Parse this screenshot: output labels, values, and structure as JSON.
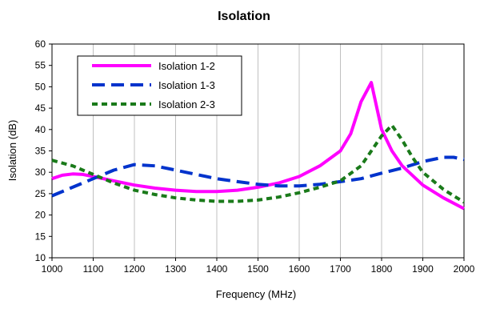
{
  "chart_data": {
    "type": "line",
    "title": "Isolation",
    "xlabel": "Frequency (MHz)",
    "ylabel": "Isolation (dB)",
    "xlim": [
      1000,
      2000
    ],
    "ylim": [
      10,
      60
    ],
    "xticks": [
      1000,
      1100,
      1200,
      1300,
      1400,
      1500,
      1600,
      1700,
      1800,
      1900,
      2000
    ],
    "yticks": [
      10,
      15,
      20,
      25,
      30,
      35,
      40,
      45,
      50,
      55,
      60
    ],
    "grid": "vertical",
    "legend_position": "top-left",
    "series": [
      {
        "name": "Isolation 1-2",
        "color": "#ff00ff",
        "style": "solid",
        "x": [
          1000,
          1025,
          1050,
          1075,
          1100,
          1150,
          1200,
          1250,
          1300,
          1350,
          1400,
          1450,
          1500,
          1550,
          1600,
          1650,
          1700,
          1725,
          1750,
          1775,
          1800,
          1825,
          1850,
          1900,
          1950,
          2000
        ],
        "y": [
          28.5,
          29.3,
          29.6,
          29.5,
          29.0,
          28.0,
          27.0,
          26.3,
          25.8,
          25.5,
          25.5,
          25.8,
          26.5,
          27.5,
          29.0,
          31.5,
          35.0,
          39.0,
          46.5,
          51.0,
          40.0,
          35.0,
          31.5,
          27.0,
          24.0,
          21.5
        ]
      },
      {
        "name": "Isolation 1-3",
        "color": "#0033cc",
        "style": "dashed",
        "x": [
          1000,
          1050,
          1100,
          1150,
          1200,
          1250,
          1300,
          1350,
          1400,
          1450,
          1500,
          1550,
          1600,
          1650,
          1700,
          1750,
          1800,
          1850,
          1900,
          1950,
          1975,
          2000
        ],
        "y": [
          24.5,
          26.5,
          28.5,
          30.5,
          31.8,
          31.5,
          30.5,
          29.5,
          28.5,
          27.8,
          27.2,
          26.8,
          26.8,
          27.2,
          27.8,
          28.5,
          29.8,
          31.0,
          32.5,
          33.5,
          33.5,
          33.0
        ]
      },
      {
        "name": "Isolation 2-3",
        "color": "#1a7a1a",
        "style": "dotted",
        "x": [
          1000,
          1050,
          1100,
          1150,
          1200,
          1250,
          1300,
          1350,
          1400,
          1450,
          1500,
          1550,
          1600,
          1650,
          1700,
          1750,
          1800,
          1825,
          1850,
          1875,
          1900,
          1950,
          2000
        ],
        "y": [
          32.8,
          31.5,
          29.5,
          27.5,
          25.8,
          24.8,
          24.0,
          23.5,
          23.2,
          23.2,
          23.5,
          24.2,
          25.2,
          26.5,
          28.0,
          31.5,
          38.5,
          41.0,
          37.5,
          33.5,
          30.0,
          26.0,
          23.0
        ]
      }
    ]
  }
}
